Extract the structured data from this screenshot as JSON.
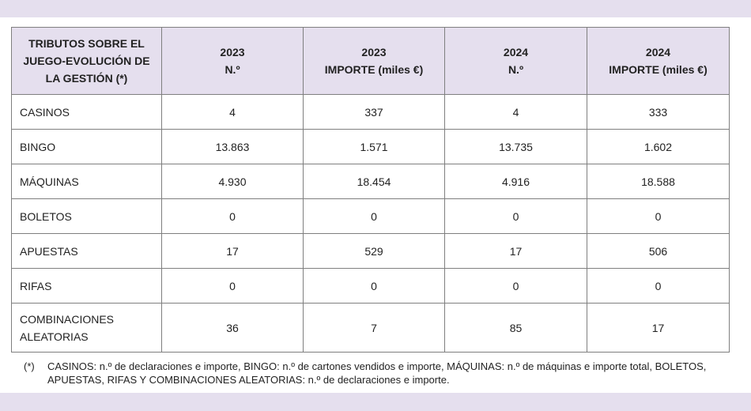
{
  "table": {
    "header": {
      "first": [
        "TRIBUTOS SOBRE EL",
        "JUEGO-EVOLUCIÓN DE",
        "LA GESTIÓN (*)"
      ],
      "columns": [
        {
          "year": "2023",
          "label": "N.º"
        },
        {
          "year": "2023",
          "label": "IMPORTE (miles €)"
        },
        {
          "year": "2024",
          "label": "N.º"
        },
        {
          "year": "2024",
          "label": "IMPORTE (miles €)"
        }
      ]
    },
    "rows": [
      {
        "label": [
          "CASINOS"
        ],
        "values": [
          "4",
          "337",
          "4",
          "333"
        ]
      },
      {
        "label": [
          "BINGO"
        ],
        "values": [
          "13.863",
          "1.571",
          "13.735",
          "1.602"
        ]
      },
      {
        "label": [
          "MÁQUINAS"
        ],
        "values": [
          "4.930",
          "18.454",
          "4.916",
          "18.588"
        ]
      },
      {
        "label": [
          "BOLETOS"
        ],
        "values": [
          "0",
          "0",
          "0",
          "0"
        ]
      },
      {
        "label": [
          "APUESTAS"
        ],
        "values": [
          "17",
          "529",
          "17",
          "506"
        ]
      },
      {
        "label": [
          "RIFAS"
        ],
        "values": [
          "0",
          "0",
          "0",
          "0"
        ]
      },
      {
        "label": [
          "COMBINACIONES",
          "ALEATORIAS"
        ],
        "values": [
          "36",
          "7",
          "85",
          "17"
        ]
      }
    ]
  },
  "footnote": {
    "mark": "(*)",
    "text": "CASINOS: n.º de declaraciones e importe, BINGO: n.º de cartones vendidos e importe, MÁQUINAS: n.º de máquinas e importe total, BOLETOS, APUESTAS, RIFAS Y COMBINACIONES ALEATORIAS: n.º de declaraciones e importe."
  },
  "colors": {
    "band": "#e5dfee",
    "border": "#7f7f7f",
    "text": "#222222"
  }
}
